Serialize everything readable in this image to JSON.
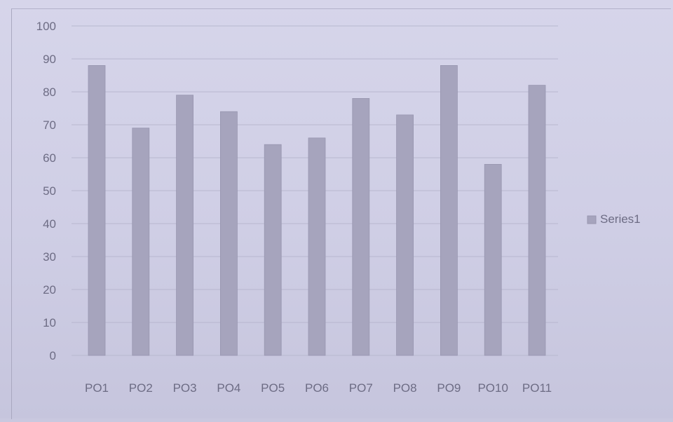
{
  "chart_data": {
    "type": "bar",
    "categories": [
      "PO1",
      "PO2",
      "PO3",
      "PO4",
      "PO5",
      "PO6",
      "PO7",
      "PO8",
      "PO9",
      "PO10",
      "PO11"
    ],
    "series": [
      {
        "name": "Series1",
        "values": [
          88,
          69,
          79,
          74,
          64,
          66,
          78,
          73,
          88,
          58,
          82
        ]
      }
    ],
    "yticks": [
      "0",
      "10",
      "20",
      "30",
      "40",
      "50",
      "60",
      "70",
      "80",
      "90",
      "100"
    ],
    "ylim": [
      0,
      100
    ],
    "grid": true,
    "legend_position": "right",
    "colors": {
      "bar": "#a6a4bd",
      "bar_edge": "#9896b0",
      "grid": "#b8b7cf",
      "text": "#6d6c84"
    }
  }
}
